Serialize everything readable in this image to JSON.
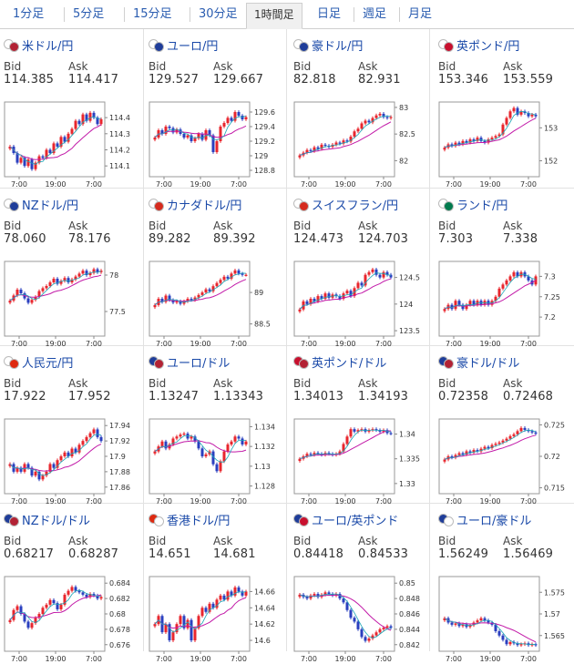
{
  "tabs": [
    {
      "label": "1分足",
      "active": false
    },
    {
      "label": "5分足",
      "active": false
    },
    {
      "label": "15分足",
      "active": false
    },
    {
      "label": "30分足",
      "active": false
    },
    {
      "label": "1時間足",
      "active": true
    },
    {
      "label": "日足",
      "active": false
    },
    {
      "label": "週足",
      "active": false
    },
    {
      "label": "月足",
      "active": false
    }
  ],
  "bid_label": "Bid",
  "ask_label": "Ask",
  "x_ticks": [
    "7:00",
    "19:00",
    "7:00"
  ],
  "colors": {
    "up": "#e8262d",
    "down": "#2a3fbf",
    "ma_short": "#1aa6b7",
    "ma_long": "#c21aa8",
    "link": "#1a49a8"
  },
  "pairs": [
    {
      "name": "米ドル/円",
      "flags": [
        "#ffffff",
        "#b22234"
      ],
      "bid": "114.385",
      "ask": "114.417",
      "y_ticks": [
        "114.4",
        "114.3",
        "114.2",
        "114.1"
      ],
      "y_range": [
        114.05,
        114.48
      ],
      "closes": [
        114.22,
        114.18,
        114.12,
        114.15,
        114.1,
        114.14,
        114.08,
        114.12,
        114.16,
        114.15,
        114.2,
        114.18,
        114.24,
        114.22,
        114.28,
        114.25,
        114.3,
        114.33,
        114.38,
        114.36,
        114.42,
        114.38,
        114.43,
        114.4,
        114.36,
        114.39
      ]
    },
    {
      "name": "ユーロ/円",
      "flags": [
        "#ffffff",
        "#1f3d99"
      ],
      "bid": "129.527",
      "ask": "129.667",
      "y_ticks": [
        "129.6",
        "129.4",
        "129.2",
        "129",
        "128.8"
      ],
      "y_range": [
        128.75,
        129.7
      ],
      "closes": [
        129.25,
        129.35,
        129.3,
        129.4,
        129.38,
        129.32,
        129.36,
        129.3,
        129.25,
        129.28,
        129.2,
        129.24,
        129.3,
        129.22,
        129.35,
        129.28,
        129.05,
        129.2,
        129.4,
        129.45,
        129.52,
        129.48,
        129.6,
        129.55,
        129.5,
        129.53
      ]
    },
    {
      "name": "豪ドル/円",
      "flags": [
        "#ffffff",
        "#1f3d99"
      ],
      "bid": "82.818",
      "ask": "82.931",
      "y_ticks": [
        "83",
        "82.5",
        "82"
      ],
      "y_range": [
        81.75,
        83.05
      ],
      "closes": [
        82.1,
        82.15,
        82.2,
        82.18,
        82.25,
        82.22,
        82.3,
        82.28,
        82.26,
        82.3,
        82.34,
        82.32,
        82.38,
        82.36,
        82.45,
        82.55,
        82.6,
        82.7,
        82.75,
        82.72,
        82.8,
        82.85,
        82.88,
        82.82,
        82.8,
        82.82
      ]
    },
    {
      "name": "英ポンド/円",
      "flags": [
        "#ffffff",
        "#c8102e"
      ],
      "bid": "153.346",
      "ask": "153.559",
      "y_ticks": [
        "153",
        "152"
      ],
      "y_range": [
        151.6,
        153.7
      ],
      "closes": [
        152.4,
        152.5,
        152.45,
        152.55,
        152.5,
        152.6,
        152.55,
        152.65,
        152.6,
        152.7,
        152.6,
        152.55,
        152.65,
        152.7,
        152.75,
        152.8,
        153.1,
        153.3,
        153.5,
        153.6,
        153.4,
        153.5,
        153.45,
        153.35,
        153.4,
        153.35
      ]
    },
    {
      "name": "NZドル/円",
      "flags": [
        "#ffffff",
        "#1f3d99"
      ],
      "bid": "78.060",
      "ask": "78.176",
      "y_ticks": [
        "78",
        "77.5"
      ],
      "y_range": [
        77.2,
        78.15
      ],
      "closes": [
        77.65,
        77.72,
        77.8,
        77.75,
        77.68,
        77.62,
        77.66,
        77.7,
        77.78,
        77.82,
        77.85,
        77.9,
        77.95,
        77.88,
        77.92,
        77.96,
        77.9,
        77.94,
        77.98,
        78.02,
        78.06,
        78.0,
        78.03,
        78.08,
        78.04,
        78.06
      ]
    },
    {
      "name": "カナダドル/円",
      "flags": [
        "#ffffff",
        "#d52b1e"
      ],
      "bid": "89.282",
      "ask": "89.392",
      "y_ticks": [
        "89",
        "88.5"
      ],
      "y_range": [
        88.35,
        89.45
      ],
      "closes": [
        88.8,
        88.9,
        88.85,
        88.95,
        88.88,
        88.84,
        88.86,
        88.82,
        88.86,
        88.9,
        88.88,
        88.92,
        88.96,
        89.0,
        89.05,
        89.02,
        89.1,
        89.15,
        89.2,
        89.25,
        89.22,
        89.3,
        89.35,
        89.3,
        89.28,
        89.28
      ]
    },
    {
      "name": "スイスフラン/円",
      "flags": [
        "#ffffff",
        "#d52b1e"
      ],
      "bid": "124.473",
      "ask": "124.703",
      "y_ticks": [
        "124.5",
        "124",
        "123.5"
      ],
      "y_range": [
        123.45,
        124.75
      ],
      "closes": [
        123.9,
        124.05,
        124.0,
        124.1,
        124.05,
        124.15,
        124.1,
        124.2,
        124.12,
        124.18,
        124.15,
        124.1,
        124.2,
        124.25,
        124.15,
        124.3,
        124.4,
        124.35,
        124.55,
        124.6,
        124.65,
        124.55,
        124.5,
        124.6,
        124.55,
        124.5
      ]
    },
    {
      "name": "ランド/円",
      "flags": [
        "#ffffff",
        "#007a4d"
      ],
      "bid": "7.303",
      "ask": "7.338",
      "y_ticks": [
        "7.3",
        "7.25",
        "7.2"
      ],
      "y_range": [
        7.16,
        7.33
      ],
      "closes": [
        7.22,
        7.23,
        7.22,
        7.24,
        7.23,
        7.22,
        7.23,
        7.24,
        7.23,
        7.24,
        7.23,
        7.24,
        7.23,
        7.24,
        7.25,
        7.27,
        7.28,
        7.29,
        7.3,
        7.31,
        7.3,
        7.31,
        7.3,
        7.29,
        7.28,
        7.3
      ]
    },
    {
      "name": "人民元/円",
      "flags": [
        "#ffffff",
        "#de2910"
      ],
      "bid": "17.922",
      "ask": "17.952",
      "y_ticks": [
        "17.94",
        "17.92",
        "17.9",
        "17.88",
        "17.86"
      ],
      "y_range": [
        17.855,
        17.945
      ],
      "closes": [
        17.89,
        17.88,
        17.885,
        17.88,
        17.89,
        17.885,
        17.875,
        17.88,
        17.87,
        17.875,
        17.88,
        17.89,
        17.885,
        17.895,
        17.9,
        17.905,
        17.9,
        17.91,
        17.905,
        17.915,
        17.92,
        17.925,
        17.93,
        17.935,
        17.925,
        17.92
      ]
    },
    {
      "name": "ユーロ/ドル",
      "flags": [
        "#1f3d99",
        "#b22234"
      ],
      "bid": "1.13247",
      "ask": "1.13343",
      "y_ticks": [
        "1.134",
        "1.132",
        "1.13",
        "1.128"
      ],
      "y_range": [
        1.1275,
        1.1345
      ],
      "closes": [
        1.1315,
        1.132,
        1.1325,
        1.1318,
        1.1322,
        1.1328,
        1.133,
        1.1332,
        1.1333,
        1.1328,
        1.133,
        1.1325,
        1.1318,
        1.131,
        1.1312,
        1.1315,
        1.1302,
        1.1295,
        1.1305,
        1.1315,
        1.1322,
        1.1325,
        1.133,
        1.1328,
        1.1322,
        1.1325
      ]
    },
    {
      "name": "英ポンド/ドル",
      "flags": [
        "#c8102e",
        "#b22234"
      ],
      "bid": "1.34013",
      "ask": "1.34193",
      "y_ticks": [
        "1.34",
        "1.335",
        "1.33"
      ],
      "y_range": [
        1.3285,
        1.3425
      ],
      "closes": [
        1.335,
        1.3355,
        1.336,
        1.3358,
        1.3362,
        1.336,
        1.3358,
        1.3362,
        1.336,
        1.3358,
        1.336,
        1.3365,
        1.338,
        1.3395,
        1.341,
        1.3405,
        1.3408,
        1.341,
        1.3405,
        1.3408,
        1.341,
        1.3408,
        1.3405,
        1.3408,
        1.3402,
        1.3401
      ]
    },
    {
      "name": "豪ドル/ドル",
      "flags": [
        "#1f3d99",
        "#b22234"
      ],
      "bid": "0.72358",
      "ask": "0.72468",
      "y_ticks": [
        "0.725",
        "0.72",
        "0.715"
      ],
      "y_range": [
        0.7145,
        0.7255
      ],
      "closes": [
        0.7195,
        0.72,
        0.7198,
        0.7202,
        0.7205,
        0.7203,
        0.7208,
        0.7206,
        0.721,
        0.7208,
        0.7212,
        0.7215,
        0.7213,
        0.7218,
        0.722,
        0.7222,
        0.7225,
        0.7228,
        0.7232,
        0.7235,
        0.724,
        0.7245,
        0.7242,
        0.724,
        0.7238,
        0.7236
      ]
    },
    {
      "name": "NZドル/ドル",
      "flags": [
        "#1f3d99",
        "#b22234"
      ],
      "bid": "0.68217",
      "ask": "0.68287",
      "y_ticks": [
        "0.684",
        "0.682",
        "0.68",
        "0.678",
        "0.676"
      ],
      "y_range": [
        0.6755,
        0.6845
      ],
      "closes": [
        0.6792,
        0.6805,
        0.681,
        0.68,
        0.679,
        0.6782,
        0.6788,
        0.6795,
        0.68,
        0.6808,
        0.6812,
        0.6818,
        0.6814,
        0.6806,
        0.6812,
        0.6825,
        0.683,
        0.6835,
        0.683,
        0.6828,
        0.6825,
        0.6822,
        0.6826,
        0.6824,
        0.682,
        0.6822
      ]
    },
    {
      "name": "香港ドル/円",
      "flags": [
        "#de2910",
        "#ffffff"
      ],
      "bid": "14.651",
      "ask": "14.681",
      "y_ticks": [
        "14.66",
        "14.64",
        "14.62",
        "14.6"
      ],
      "y_range": [
        14.59,
        14.675
      ],
      "closes": [
        14.62,
        14.63,
        14.61,
        14.62,
        14.6,
        14.61,
        14.62,
        14.63,
        14.615,
        14.625,
        14.6,
        14.615,
        14.63,
        14.64,
        14.635,
        14.645,
        14.64,
        14.65,
        14.655,
        14.65,
        14.66,
        14.655,
        14.665,
        14.66,
        14.655,
        14.66
      ]
    },
    {
      "name": "ユーロ/英ポンド",
      "flags": [
        "#1f3d99",
        "#c8102e"
      ],
      "bid": "0.84418",
      "ask": "0.84533",
      "y_ticks": [
        "0.85",
        "0.848",
        "0.846",
        "0.844",
        "0.842"
      ],
      "y_range": [
        0.8415,
        0.8505
      ],
      "closes": [
        0.8485,
        0.8482,
        0.848,
        0.8484,
        0.8486,
        0.8482,
        0.8485,
        0.8488,
        0.8486,
        0.8484,
        0.8486,
        0.848,
        0.8475,
        0.8465,
        0.8455,
        0.845,
        0.844,
        0.843,
        0.8425,
        0.8428,
        0.8432,
        0.8436,
        0.844,
        0.8442,
        0.8444,
        0.8442
      ]
    },
    {
      "name": "ユーロ/豪ドル",
      "flags": [
        "#1f3d99",
        "#ffffff"
      ],
      "bid": "1.56249",
      "ask": "1.56469",
      "y_ticks": [
        "1.575",
        "1.57",
        "1.565"
      ],
      "y_range": [
        1.562,
        1.578
      ],
      "closes": [
        1.569,
        1.568,
        1.5675,
        1.5678,
        1.5672,
        1.5676,
        1.567,
        1.5674,
        1.568,
        1.5685,
        1.569,
        1.5685,
        1.568,
        1.5675,
        1.566,
        1.565,
        1.564,
        1.563,
        1.5635,
        1.5632,
        1.5628,
        1.563,
        1.5632,
        1.5628,
        1.563,
        1.5628
      ]
    }
  ]
}
